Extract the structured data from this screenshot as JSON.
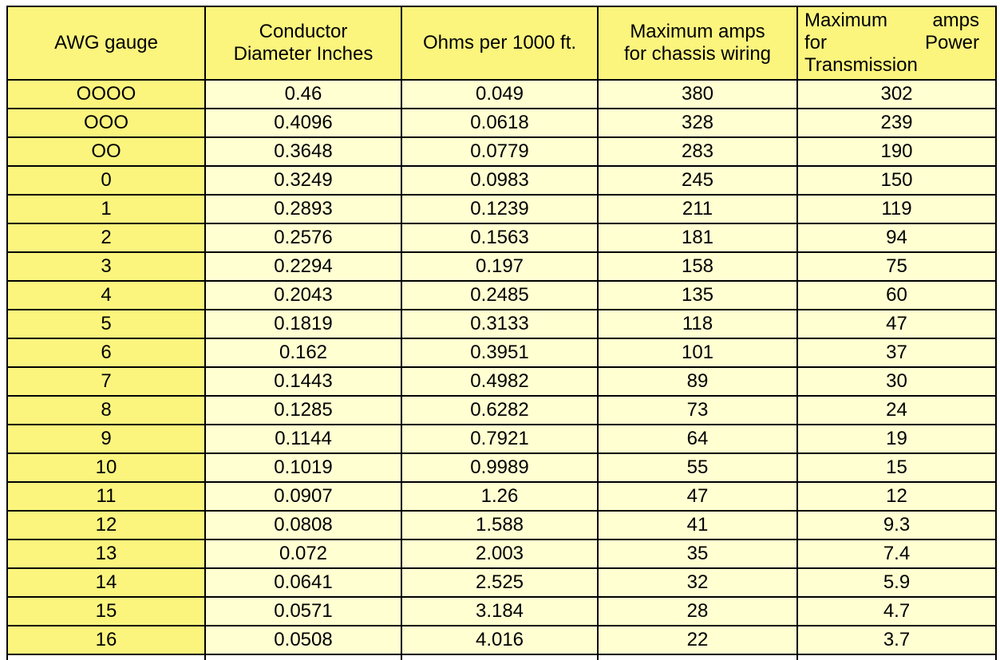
{
  "colors": {
    "page_background": "#FFFFFF",
    "header_fill": "#FBF57E",
    "first_column_fill": "#FBF57E",
    "data_cell_fill": "#FFFFD2",
    "border": "#000000",
    "text": "#000000"
  },
  "table": {
    "columns": [
      {
        "id": "awg-gauge",
        "label": "AWG gauge",
        "header_lines": [
          "AWG gauge"
        ],
        "justified": false
      },
      {
        "id": "conductor-diameter-inches",
        "label": "Conductor Diameter Inches",
        "header_lines": [
          "Conductor",
          "Diameter Inches"
        ],
        "justified": false
      },
      {
        "id": "ohms-per-1000-ft",
        "label": "Ohms per 1000 ft.",
        "header_lines": [
          "Ohms per 1000 ft."
        ],
        "justified": false
      },
      {
        "id": "max-amps-chassis-wiring",
        "label": "Maximum amps for chassis wiring",
        "header_lines": [
          "Maximum amps",
          "for chassis wiring"
        ],
        "justified": false
      },
      {
        "id": "max-amps-power-transmission",
        "label": "Maximum amps for Power Transmission",
        "header_lines": [
          "Maximum amps",
          "for Power",
          "Transmission"
        ],
        "justified": true
      }
    ],
    "rows": [
      [
        "OOOO",
        "0.46",
        "0.049",
        "380",
        "302"
      ],
      [
        "OOO",
        "0.4096",
        "0.0618",
        "328",
        "239"
      ],
      [
        "OO",
        "0.3648",
        "0.0779",
        "283",
        "190"
      ],
      [
        "0",
        "0.3249",
        "0.0983",
        "245",
        "150"
      ],
      [
        "1",
        "0.2893",
        "0.1239",
        "211",
        "119"
      ],
      [
        "2",
        "0.2576",
        "0.1563",
        "181",
        "94"
      ],
      [
        "3",
        "0.2294",
        "0.197",
        "158",
        "75"
      ],
      [
        "4",
        "0.2043",
        "0.2485",
        "135",
        "60"
      ],
      [
        "5",
        "0.1819",
        "0.3133",
        "118",
        "47"
      ],
      [
        "6",
        "0.162",
        "0.3951",
        "101",
        "37"
      ],
      [
        "7",
        "0.1443",
        "0.4982",
        "89",
        "30"
      ],
      [
        "8",
        "0.1285",
        "0.6282",
        "73",
        "24"
      ],
      [
        "9",
        "0.1144",
        "0.7921",
        "64",
        "19"
      ],
      [
        "10",
        "0.1019",
        "0.9989",
        "55",
        "15"
      ],
      [
        "11",
        "0.0907",
        "1.26",
        "47",
        "12"
      ],
      [
        "12",
        "0.0808",
        "1.588",
        "41",
        "9.3"
      ],
      [
        "13",
        "0.072",
        "2.003",
        "35",
        "7.4"
      ],
      [
        "14",
        "0.0641",
        "2.525",
        "32",
        "5.9"
      ],
      [
        "15",
        "0.0571",
        "3.184",
        "28",
        "4.7"
      ],
      [
        "16",
        "0.0508",
        "4.016",
        "22",
        "3.7"
      ]
    ]
  }
}
